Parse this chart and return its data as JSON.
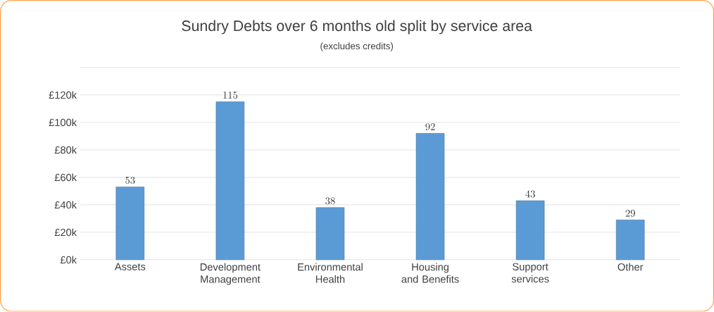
{
  "chart_data": {
    "type": "bar",
    "title": "Sundry Debts over 6 months old split by service area",
    "subtitle": "(excludes credits)",
    "categories": [
      "Assets",
      "Development Management",
      "Environmental Health",
      "Housing and Benefits",
      "Support services",
      "Other"
    ],
    "values": [
      53,
      115,
      38,
      92,
      43,
      29
    ],
    "color": "#5b9bd5",
    "data_labels": true,
    "grid": "y",
    "ylim": [
      0,
      140
    ],
    "yticks": [
      {
        "value": 0,
        "label": "£0k"
      },
      {
        "value": 20,
        "label": "£20k"
      },
      {
        "value": 40,
        "label": "£40k"
      },
      {
        "value": 60,
        "label": "£60k"
      },
      {
        "value": 80,
        "label": "£80k"
      },
      {
        "value": 100,
        "label": "£100k"
      },
      {
        "value": 120,
        "label": "£120k"
      },
      {
        "value": 140,
        "label": null
      }
    ]
  }
}
